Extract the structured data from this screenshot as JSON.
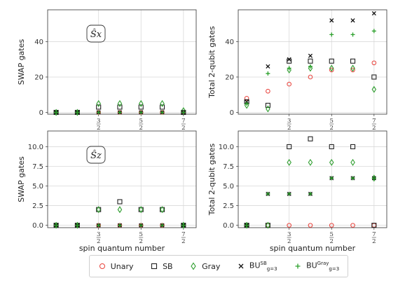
{
  "chart_data": [
    {
      "type": "scatter",
      "panel": "top-left",
      "annotation": "Ŝx",
      "ylabel": "SWAP gates",
      "ylim": [
        -1,
        58
      ],
      "yticks": [
        0,
        20,
        40
      ],
      "ytick_labels": [
        "0",
        "20",
        "40"
      ],
      "xticks": [
        1.5,
        2.5,
        3.5
      ],
      "xtick_labels": [
        "3/2",
        "5/2",
        "7/2"
      ],
      "xlim": [
        0.3,
        3.8
      ],
      "grid": true,
      "series": [
        {
          "key": "unary",
          "x": [
            0.5,
            1,
            1.5,
            2,
            2.5,
            3,
            3.5
          ],
          "values": [
            0,
            0,
            0,
            0,
            0,
            0,
            0
          ]
        },
        {
          "key": "sb",
          "x": [
            0.5,
            1,
            1.5,
            2,
            2.5,
            3,
            3.5
          ],
          "values": [
            0,
            0,
            3,
            3,
            3,
            3,
            0
          ]
        },
        {
          "key": "gray",
          "x": [
            0.5,
            1,
            1.5,
            2,
            2.5,
            3,
            3.5
          ],
          "values": [
            0,
            0,
            5,
            5,
            5,
            5,
            1
          ]
        },
        {
          "key": "bu_sb",
          "x": [
            0.5,
            1,
            1.5,
            2,
            2.5,
            3,
            3.5
          ],
          "values": [
            0,
            0,
            0,
            0,
            0,
            0,
            0
          ]
        },
        {
          "key": "bu_gray",
          "x": [
            0.5,
            1,
            1.5,
            2,
            2.5,
            3,
            3.5
          ],
          "values": [
            0,
            0,
            0,
            0,
            0,
            0,
            0
          ]
        }
      ]
    },
    {
      "type": "scatter",
      "panel": "top-right",
      "ylabel": "Total 2-qubit gates",
      "ylim": [
        -1,
        58
      ],
      "yticks": [
        0,
        20,
        40
      ],
      "ytick_labels": [
        "0",
        "20",
        "40"
      ],
      "xticks": [
        1.5,
        2.5,
        3.5
      ],
      "xtick_labels": [
        "3/2",
        "5/2",
        "7/2"
      ],
      "xlim": [
        0.3,
        3.8
      ],
      "grid": true,
      "series": [
        {
          "key": "unary",
          "x": [
            0.5,
            1,
            1.5,
            2,
            2.5,
            3,
            3.5
          ],
          "values": [
            8,
            12,
            16,
            20,
            24,
            24,
            28
          ]
        },
        {
          "key": "sb",
          "x": [
            0.5,
            1,
            1.5,
            2,
            2.5,
            3,
            3.5
          ],
          "values": [
            6,
            4,
            29,
            29,
            29,
            29,
            20
          ]
        },
        {
          "key": "gray",
          "x": [
            0.5,
            1,
            1.5,
            2,
            2.5,
            3,
            3.5
          ],
          "values": [
            4,
            2,
            24,
            25,
            25,
            25,
            13
          ]
        },
        {
          "key": "bu_sb",
          "x": [
            0.5,
            1,
            1.5,
            2,
            2.5,
            3,
            3.5
          ],
          "values": [
            6,
            26,
            30,
            32,
            52,
            52,
            56
          ]
        },
        {
          "key": "bu_gray",
          "x": [
            0.5,
            1,
            1.5,
            2,
            2.5,
            3,
            3.5
          ],
          "values": [
            5,
            22,
            25,
            26,
            44,
            44,
            46
          ]
        }
      ]
    },
    {
      "type": "scatter",
      "panel": "bottom-left",
      "annotation": "Ŝz",
      "ylabel": "SWAP gates",
      "xlabel": "spin quantum number",
      "ylim": [
        -0.3,
        12
      ],
      "yticks": [
        0,
        2.5,
        5,
        7.5,
        10
      ],
      "ytick_labels": [
        "0.0",
        "2.5",
        "5.0",
        "7.5",
        "10.0"
      ],
      "xticks": [
        1.5,
        2.5,
        3.5
      ],
      "xtick_labels": [
        "3/2",
        "5/2",
        "7/2"
      ],
      "xlim": [
        0.3,
        3.8
      ],
      "grid": true,
      "series": [
        {
          "key": "unary",
          "x": [
            0.5,
            1,
            1.5,
            2,
            2.5,
            3,
            3.5
          ],
          "values": [
            0,
            0,
            0,
            0,
            0,
            0,
            0
          ]
        },
        {
          "key": "sb",
          "x": [
            0.5,
            1,
            1.5,
            2,
            2.5,
            3,
            3.5
          ],
          "values": [
            0,
            0,
            2,
            3,
            2,
            2,
            0
          ]
        },
        {
          "key": "gray",
          "x": [
            0.5,
            1,
            1.5,
            2,
            2.5,
            3,
            3.5
          ],
          "values": [
            0,
            0,
            2,
            2,
            2,
            2,
            0
          ]
        },
        {
          "key": "bu_sb",
          "x": [
            0.5,
            1,
            1.5,
            2,
            2.5,
            3,
            3.5
          ],
          "values": [
            0,
            0,
            0,
            0,
            0,
            0,
            0
          ]
        },
        {
          "key": "bu_gray",
          "x": [
            0.5,
            1,
            1.5,
            2,
            2.5,
            3,
            3.5
          ],
          "values": [
            0,
            0,
            0,
            0,
            0,
            0,
            0
          ]
        }
      ]
    },
    {
      "type": "scatter",
      "panel": "bottom-right",
      "ylabel": "Total 2-qubit gates",
      "xlabel": "spin quantum number",
      "ylim": [
        -0.3,
        12
      ],
      "yticks": [
        0,
        2.5,
        5,
        7.5,
        10
      ],
      "ytick_labels": [
        "0.0",
        "2.5",
        "5.0",
        "7.5",
        "10.0"
      ],
      "xticks": [
        1.5,
        2.5,
        3.5
      ],
      "xtick_labels": [
        "3/2",
        "5/2",
        "7/2"
      ],
      "xlim": [
        0.3,
        3.8
      ],
      "grid": true,
      "series": [
        {
          "key": "unary",
          "x": [
            0.5,
            1,
            1.5,
            2,
            2.5,
            3,
            3.5
          ],
          "values": [
            0,
            0,
            0,
            0,
            0,
            0,
            0
          ]
        },
        {
          "key": "sb",
          "x": [
            0.5,
            1,
            1.5,
            2,
            2.5,
            3,
            3.5
          ],
          "values": [
            0,
            0,
            10,
            11,
            10,
            10,
            0
          ]
        },
        {
          "key": "gray",
          "x": [
            0.5,
            1,
            1.5,
            2,
            2.5,
            3,
            3.5
          ],
          "values": [
            0,
            0,
            8,
            8,
            8,
            8,
            6
          ]
        },
        {
          "key": "bu_sb",
          "x": [
            0.5,
            1,
            1.5,
            2,
            2.5,
            3,
            3.5
          ],
          "values": [
            0,
            4,
            4,
            4,
            6,
            6,
            6
          ]
        },
        {
          "key": "bu_gray",
          "x": [
            0.5,
            1,
            1.5,
            2,
            2.5,
            3,
            3.5
          ],
          "values": [
            0,
            4,
            4,
            4,
            6,
            6,
            6
          ]
        }
      ]
    }
  ],
  "legend": {
    "placement": "bottom-center",
    "items": [
      {
        "key": "unary",
        "label": "Unary",
        "marker": "circle",
        "color": "#e8413a"
      },
      {
        "key": "sb",
        "label": "SB",
        "marker": "square",
        "color": "#222222"
      },
      {
        "key": "gray",
        "label": "Gray",
        "marker": "diamond",
        "color": "#2e9e2e"
      },
      {
        "key": "bu_sb",
        "label_main": "BU",
        "label_sup": "SB",
        "label_sub": "g=3",
        "marker": "x",
        "color": "#111111"
      },
      {
        "key": "bu_gray",
        "label_main": "BU",
        "label_sup": "Gray",
        "label_sub": "g=3",
        "marker": "plus",
        "color": "#2ca02c"
      }
    ]
  }
}
